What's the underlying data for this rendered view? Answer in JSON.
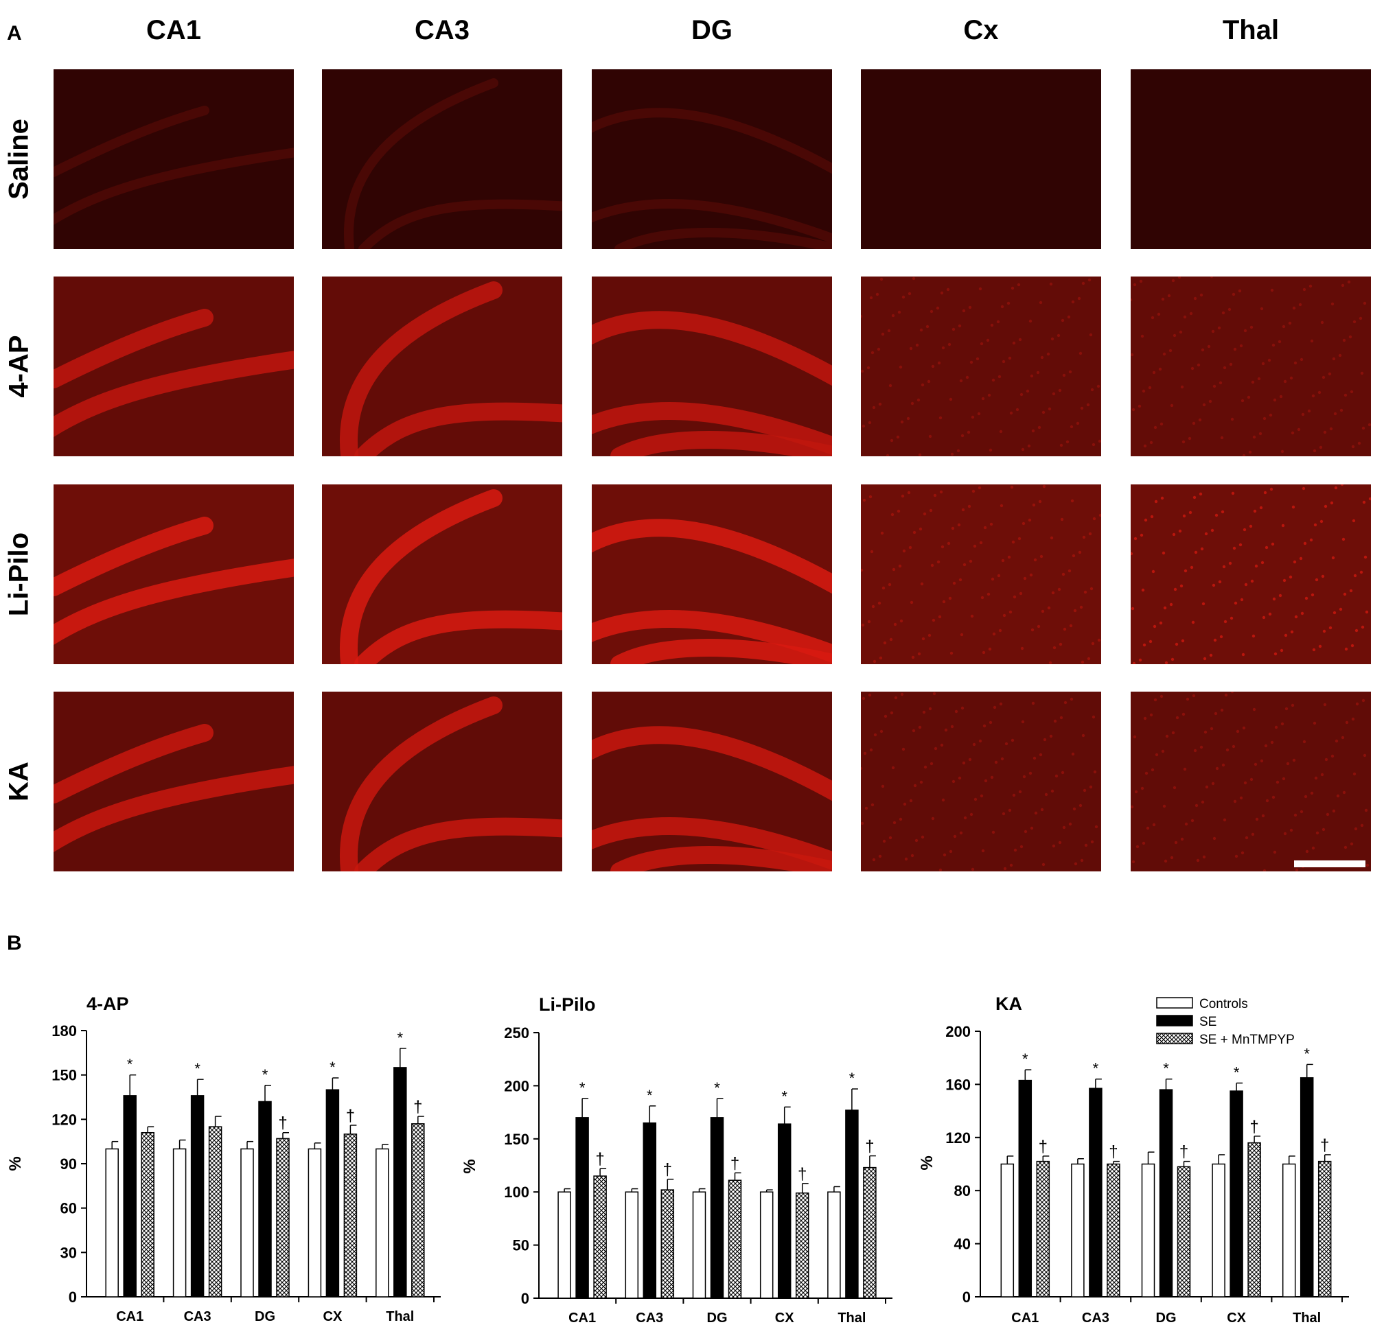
{
  "panels": {
    "a_label": "A",
    "b_label": "B"
  },
  "grid": {
    "columns": [
      "CA1",
      "CA3",
      "DG",
      "Cx",
      "Thal"
    ],
    "rows": [
      "Saline",
      "4-AP",
      "Li-Pilo",
      "KA"
    ],
    "base_colors": [
      "#300403",
      "#630c07",
      "#6e0e08",
      "#610c07"
    ],
    "band_colors": [
      "#4f0906",
      "#c0160e",
      "#d81a10",
      "#c8170e"
    ]
  },
  "chart_data": [
    {
      "type": "bar",
      "title": "4-AP",
      "ylabel": "%",
      "xlabel": "",
      "ylim": [
        0,
        180
      ],
      "yticks": [
        0,
        30,
        60,
        90,
        120,
        150,
        180
      ],
      "categories": [
        "CA1",
        "CA3",
        "DG",
        "CX",
        "Thal"
      ],
      "series": [
        {
          "name": "Controls",
          "values": [
            100,
            100,
            100,
            100,
            100
          ],
          "errors": [
            5,
            6,
            5,
            4,
            3
          ]
        },
        {
          "name": "SE",
          "values": [
            136,
            136,
            132,
            140,
            155
          ],
          "errors": [
            14,
            11,
            11,
            8,
            13
          ]
        },
        {
          "name": "SE + MnTMPYP",
          "values": [
            111,
            115,
            107,
            110,
            117
          ],
          "errors": [
            4,
            7,
            4,
            6,
            5
          ]
        }
      ],
      "markers": [
        {
          "series": 1,
          "category": 0,
          "text": "*"
        },
        {
          "series": 1,
          "category": 1,
          "text": "*"
        },
        {
          "series": 1,
          "category": 2,
          "text": "*"
        },
        {
          "series": 1,
          "category": 3,
          "text": "*"
        },
        {
          "series": 1,
          "category": 4,
          "text": "*"
        },
        {
          "series": 2,
          "category": 2,
          "text": "†"
        },
        {
          "series": 2,
          "category": 3,
          "text": "†"
        },
        {
          "series": 2,
          "category": 4,
          "text": "†"
        }
      ]
    },
    {
      "type": "bar",
      "title": "Li-Pilo",
      "ylabel": "%",
      "xlabel": "",
      "ylim": [
        0,
        250
      ],
      "yticks": [
        0,
        50,
        100,
        150,
        200,
        250
      ],
      "categories": [
        "CA1",
        "CA3",
        "DG",
        "CX",
        "Thal"
      ],
      "series": [
        {
          "name": "Controls",
          "values": [
            100,
            100,
            100,
            100,
            100
          ],
          "errors": [
            3,
            3,
            3,
            2,
            5
          ]
        },
        {
          "name": "SE",
          "values": [
            170,
            165,
            170,
            164,
            177
          ],
          "errors": [
            18,
            16,
            18,
            16,
            20
          ]
        },
        {
          "name": "SE + MnTMPYP",
          "values": [
            115,
            102,
            111,
            99,
            123
          ],
          "errors": [
            7,
            10,
            7,
            9,
            11
          ]
        }
      ],
      "markers": [
        {
          "series": 1,
          "category": 0,
          "text": "*"
        },
        {
          "series": 1,
          "category": 1,
          "text": "*"
        },
        {
          "series": 1,
          "category": 2,
          "text": "*"
        },
        {
          "series": 1,
          "category": 3,
          "text": "*"
        },
        {
          "series": 1,
          "category": 4,
          "text": "*"
        },
        {
          "series": 2,
          "category": 0,
          "text": "†"
        },
        {
          "series": 2,
          "category": 1,
          "text": "†"
        },
        {
          "series": 2,
          "category": 2,
          "text": "†"
        },
        {
          "series": 2,
          "category": 3,
          "text": "†"
        },
        {
          "series": 2,
          "category": 4,
          "text": "†"
        }
      ]
    },
    {
      "type": "bar",
      "title": "KA",
      "ylabel": "%",
      "xlabel": "",
      "ylim": [
        0,
        200
      ],
      "yticks": [
        0,
        40,
        80,
        120,
        160,
        200
      ],
      "categories": [
        "CA1",
        "CA3",
        "DG",
        "CX",
        "Thal"
      ],
      "series": [
        {
          "name": "Controls",
          "values": [
            100,
            100,
            100,
            100,
            100
          ],
          "errors": [
            6,
            4,
            9,
            7,
            6
          ]
        },
        {
          "name": "SE",
          "values": [
            163,
            157,
            156,
            155,
            165
          ],
          "errors": [
            8,
            7,
            8,
            6,
            10
          ]
        },
        {
          "name": "SE + MnTMPYP",
          "values": [
            102,
            100,
            98,
            116,
            102
          ],
          "errors": [
            4,
            2,
            4,
            5,
            5
          ]
        }
      ],
      "markers": [
        {
          "series": 1,
          "category": 0,
          "text": "*"
        },
        {
          "series": 1,
          "category": 1,
          "text": "*"
        },
        {
          "series": 1,
          "category": 2,
          "text": "*"
        },
        {
          "series": 1,
          "category": 3,
          "text": "*"
        },
        {
          "series": 1,
          "category": 4,
          "text": "*"
        },
        {
          "series": 2,
          "category": 0,
          "text": "†"
        },
        {
          "series": 2,
          "category": 1,
          "text": "†"
        },
        {
          "series": 2,
          "category": 2,
          "text": "†"
        },
        {
          "series": 2,
          "category": 3,
          "text": "†"
        },
        {
          "series": 2,
          "category": 4,
          "text": "†"
        }
      ]
    }
  ],
  "legend": {
    "items": [
      "Controls",
      "SE",
      "SE + MnTMPYP"
    ],
    "placement": "top-right"
  },
  "colors": {
    "controls": "#ffffff",
    "se": "#000000",
    "treated_hatch": "#000000"
  }
}
